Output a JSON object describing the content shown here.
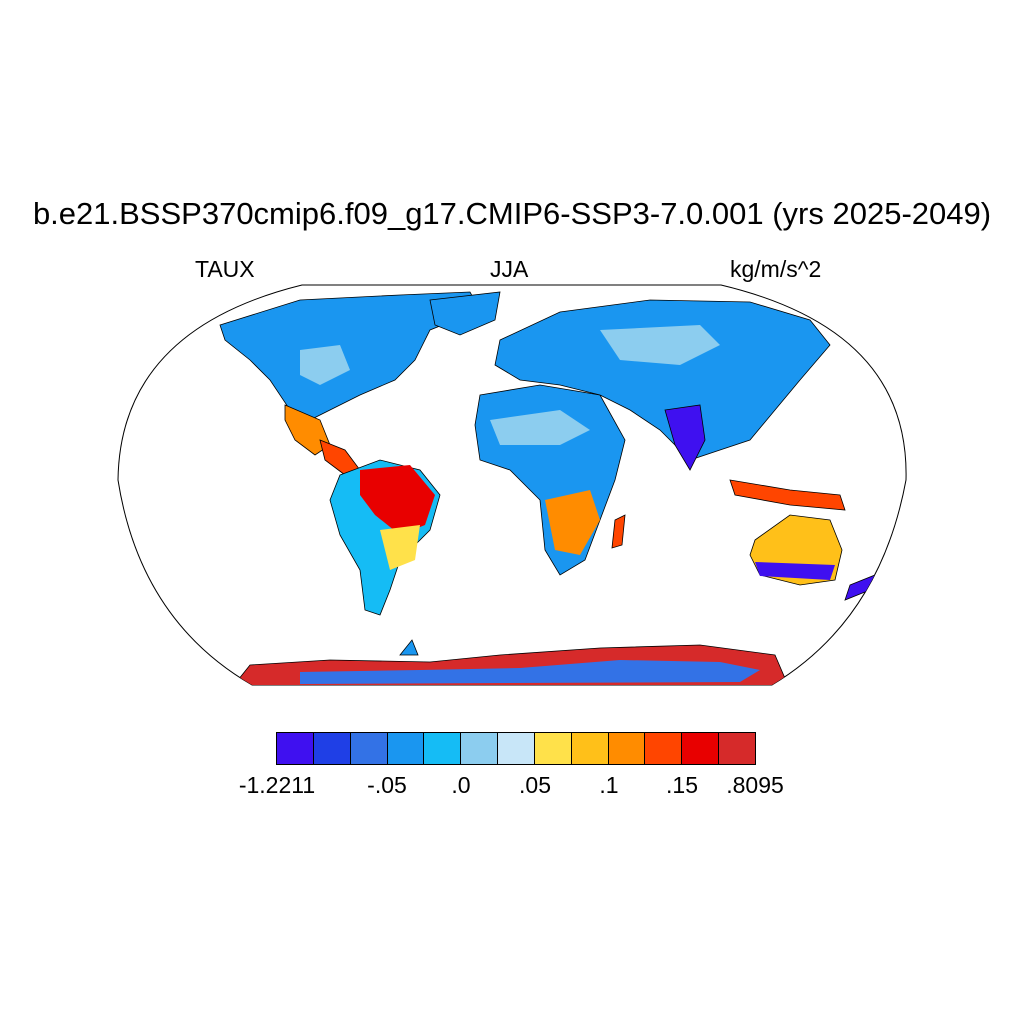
{
  "title": "b.e21.BSSP370cmip6.f09_g17.CMIP6-SSP3-7.0.001 (yrs 2025-2049)",
  "left_string": "TAUX",
  "center_string": "JJA",
  "right_string": "kg/m/s^2",
  "projection": "robinson",
  "colorbar": {
    "colors": [
      "#3f10f0",
      "#1f3fe6",
      "#3372e6",
      "#1a96f0",
      "#15bcf5",
      "#8ccdef",
      "#c8e6f8",
      "#ffe14a",
      "#ffc019",
      "#ff8c00",
      "#ff4500",
      "#e80000",
      "#d62a2a"
    ],
    "labels": [
      "-1.2211",
      "-.05",
      ".0",
      ".05",
      ".1",
      ".15",
      ".8095"
    ]
  },
  "regions": [
    {
      "name": "North America",
      "color_index": 3
    },
    {
      "name": "Mexico",
      "color_index": 9
    },
    {
      "name": "South America north",
      "color_index": 10
    },
    {
      "name": "South America south",
      "color_index": 4
    },
    {
      "name": "Africa north",
      "color_index": 5
    },
    {
      "name": "Africa south",
      "color_index": 9
    },
    {
      "name": "Eurasia",
      "color_index": 3
    },
    {
      "name": "India",
      "color_index": 0
    },
    {
      "name": "Australia",
      "color_index": 8
    },
    {
      "name": "Antarctica",
      "color_index": 11
    }
  ]
}
